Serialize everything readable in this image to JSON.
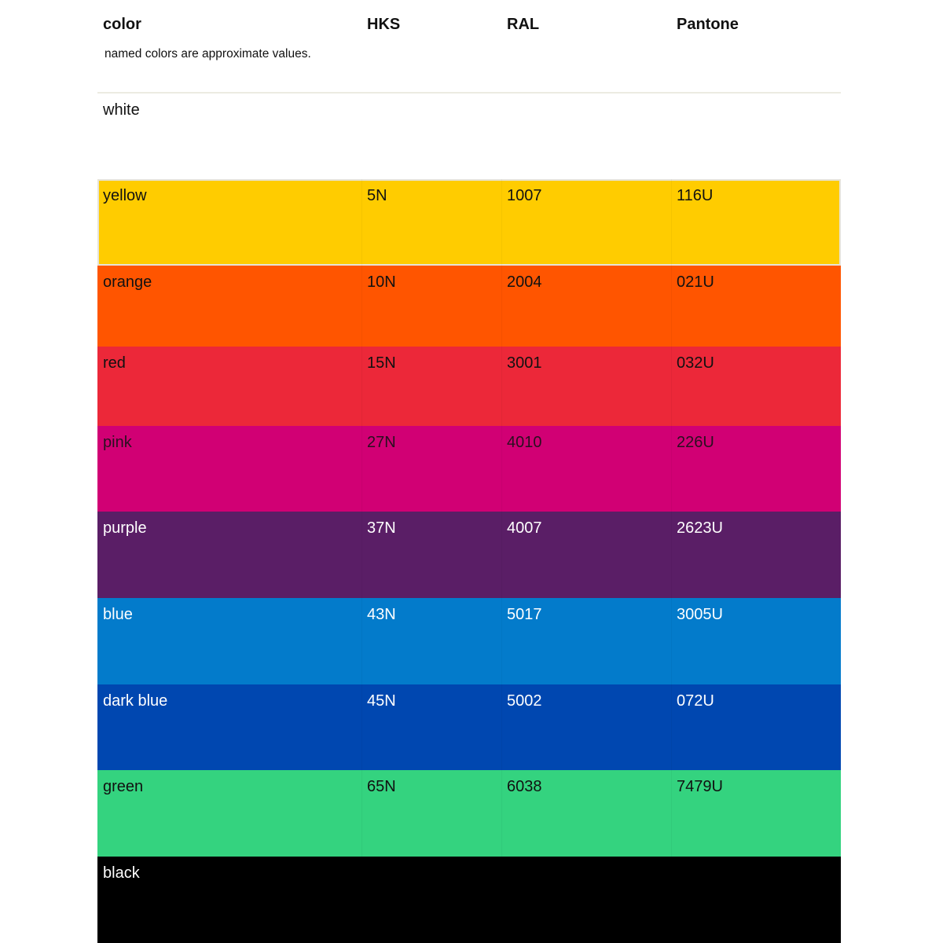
{
  "header": {
    "color": "color",
    "hks": "HKS",
    "ral": "RAL",
    "pantone": "Pantone"
  },
  "note": "named colors are approximate values.",
  "rows": [
    {
      "name": "white",
      "hks": "",
      "ral": "",
      "pantone": "",
      "bg": "#ffffff",
      "fg": "#111111"
    },
    {
      "name": "yellow",
      "hks": "5N",
      "ral": "1007",
      "pantone": "116U",
      "bg": "#ffcc00",
      "fg": "#111111"
    },
    {
      "name": "orange",
      "hks": "10N",
      "ral": "2004",
      "pantone": "021U",
      "bg": "#ff5500",
      "fg": "#111111"
    },
    {
      "name": "red",
      "hks": "15N",
      "ral": "3001",
      "pantone": "032U",
      "bg": "#ec2839",
      "fg": "#111111"
    },
    {
      "name": "pink",
      "hks": "27N",
      "ral": "4010",
      "pantone": "226U",
      "bg": "#d10074",
      "fg": "#2a1020"
    },
    {
      "name": "purple",
      "hks": "37N",
      "ral": "4007",
      "pantone": "2623U",
      "bg": "#5a1e66",
      "fg": "#ffffff"
    },
    {
      "name": "blue",
      "hks": "43N",
      "ral": "5017",
      "pantone": "3005U",
      "bg": "#037bcb",
      "fg": "#ffffff"
    },
    {
      "name": "dark blue",
      "hks": "45N",
      "ral": "5002",
      "pantone": "072U",
      "bg": "#0047b0",
      "fg": "#ffffff"
    },
    {
      "name": "green",
      "hks": "65N",
      "ral": "6038",
      "pantone": "7479U",
      "bg": "#34d37f",
      "fg": "#111111"
    },
    {
      "name": "black",
      "hks": "",
      "ral": "",
      "pantone": "",
      "bg": "#000000",
      "fg": "#ffffff"
    }
  ]
}
